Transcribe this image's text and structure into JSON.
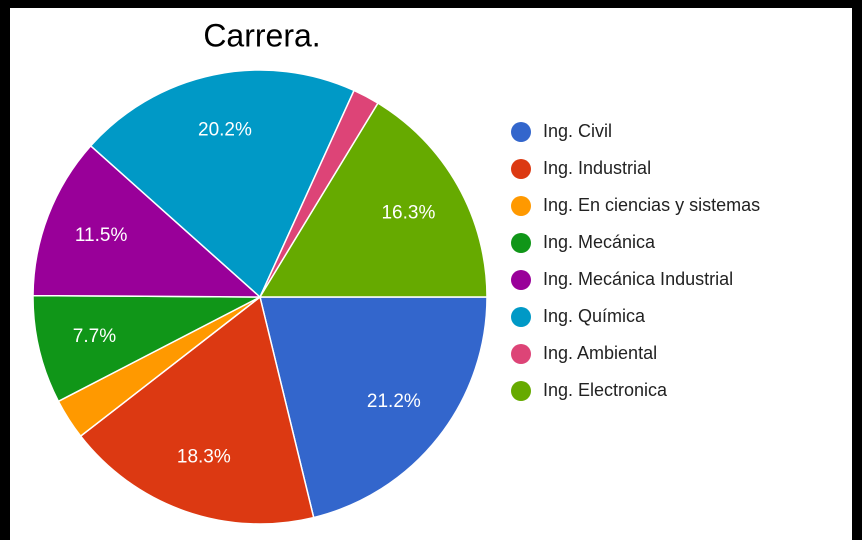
{
  "chart_data": {
    "type": "pie",
    "title": "Carrera.",
    "categories": [
      "Ing. Civil",
      "Ing. Industrial",
      "Ing. En ciencias y sistemas",
      "Ing. Mecánica",
      "Ing. Mecánica Industrial",
      "Ing. Química",
      "Ing. Ambiental",
      "Ing. Electronica"
    ],
    "values": [
      21.2,
      18.3,
      2.9,
      7.7,
      11.5,
      20.2,
      1.9,
      16.3
    ],
    "value_labels": [
      "21.2%",
      "18.3%",
      null,
      "7.7%",
      "11.5%",
      "20.2%",
      null,
      "16.3%"
    ],
    "colors": [
      "#3366cc",
      "#dc3912",
      "#ff9900",
      "#109618",
      "#990099",
      "#0099c6",
      "#dd4477",
      "#66aa00"
    ],
    "legend": "right"
  }
}
